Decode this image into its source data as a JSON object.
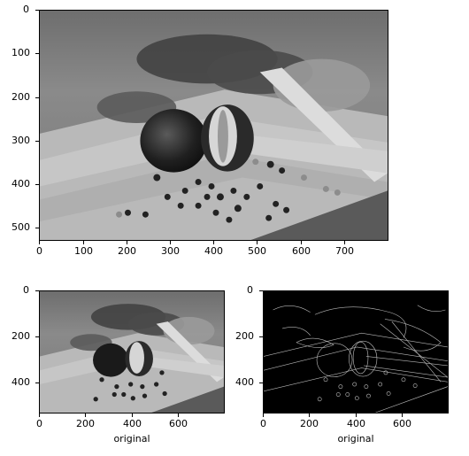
{
  "figure": {
    "panels": [
      {
        "id": "top",
        "image": "grayscale photo of onion, parsley and peppercorns on a cutting board",
        "x_ticks": [
          "0",
          "100",
          "200",
          "300",
          "400",
          "500",
          "600",
          "700"
        ],
        "y_ticks": [
          "0",
          "100",
          "200",
          "300",
          "400",
          "500"
        ],
        "xlabel": ""
      },
      {
        "id": "bottom-left",
        "image": "grayscale photo (original)",
        "x_ticks": [
          "0",
          "200",
          "400",
          "600"
        ],
        "y_ticks": [
          "0",
          "200",
          "400"
        ],
        "xlabel": "original"
      },
      {
        "id": "bottom-right",
        "image": "edge detection result",
        "x_ticks": [
          "0",
          "200",
          "400",
          "600"
        ],
        "y_ticks": [
          "0",
          "200",
          "400"
        ],
        "xlabel": "original"
      }
    ]
  }
}
